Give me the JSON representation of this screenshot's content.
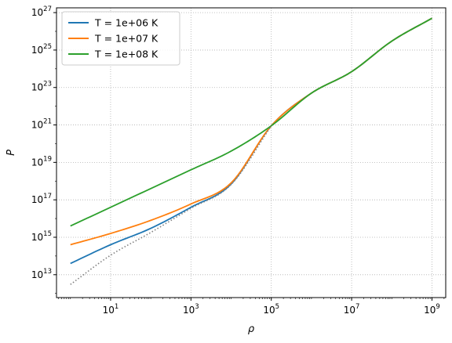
{
  "chart_data": {
    "type": "line",
    "xscale": "log",
    "yscale": "log",
    "xlabel": "ρ",
    "ylabel": "P",
    "xlim": [
      0.45,
      2200000000.0
    ],
    "ylim": [
      600000000000.0,
      1.8e+27
    ],
    "grid": true,
    "grid_style": "dotted",
    "legend_position": "upper-left",
    "xticks": [
      {
        "base": "10",
        "exp": "1",
        "value": 10
      },
      {
        "base": "10",
        "exp": "3",
        "value": 1000
      },
      {
        "base": "10",
        "exp": "5",
        "value": 100000
      },
      {
        "base": "10",
        "exp": "7",
        "value": 10000000
      },
      {
        "base": "10",
        "exp": "9",
        "value": 1000000000
      }
    ],
    "yticks": [
      {
        "base": "10",
        "exp": "13",
        "value": 10000000000000.0
      },
      {
        "base": "10",
        "exp": "15",
        "value": 1000000000000000.0
      },
      {
        "base": "10",
        "exp": "17",
        "value": 1e+17
      },
      {
        "base": "10",
        "exp": "19",
        "value": 1e+19
      },
      {
        "base": "10",
        "exp": "21",
        "value": 1e+21
      },
      {
        "base": "10",
        "exp": "23",
        "value": 1e+23
      },
      {
        "base": "10",
        "exp": "25",
        "value": 1e+25
      },
      {
        "base": "10",
        "exp": "27",
        "value": 1e+27
      }
    ],
    "series": [
      {
        "name": "T = 1e+06 K",
        "color": "#1f77b4",
        "style": "solid",
        "points": [
          [
            1,
            40000000000000.0
          ],
          [
            10,
            400000000000000.0
          ],
          [
            100,
            3000000000000000.0
          ],
          [
            1000,
            4e+16
          ],
          [
            10000,
            7e+17
          ],
          [
            100000,
            9e+20
          ],
          [
            1000000,
            5e+22
          ],
          [
            10000000,
            7e+23
          ],
          [
            100000000,
            3e+25
          ],
          [
            1000000000,
            5e+26
          ]
        ]
      },
      {
        "name": "T = 1e+07 K",
        "color": "#ff7f0e",
        "style": "solid",
        "points": [
          [
            1,
            400000000000000.0
          ],
          [
            10,
            1600000000000000.0
          ],
          [
            100,
            8000000000000000.0
          ],
          [
            1000,
            6e+16
          ],
          [
            10000,
            8e+17
          ],
          [
            100000,
            9e+20
          ],
          [
            1000000,
            5e+22
          ],
          [
            10000000,
            7e+23
          ],
          [
            100000000,
            3e+25
          ],
          [
            1000000000,
            5e+26
          ]
        ]
      },
      {
        "name": "T = 1e+08 K",
        "color": "#2ca02c",
        "style": "solid",
        "points": [
          [
            1,
            4000000000000000.0
          ],
          [
            10,
            4e+16
          ],
          [
            100,
            4e+17
          ],
          [
            1000,
            4e+18
          ],
          [
            10000,
            4e+19
          ],
          [
            100000,
            9e+20
          ],
          [
            1000000,
            5e+22
          ],
          [
            10000000,
            7e+23
          ],
          [
            100000000,
            3e+25
          ],
          [
            1000000000,
            5e+26
          ]
        ]
      },
      {
        "color": "#808080",
        "style": "dotted",
        "points": [
          [
            1,
            3000000000000.0
          ],
          [
            10,
            110000000000000.0
          ],
          [
            100,
            1800000000000000.0
          ],
          [
            1000,
            3.5e+16
          ],
          [
            10000,
            6.5e+17
          ],
          [
            100000,
            9e+20
          ]
        ]
      }
    ]
  }
}
